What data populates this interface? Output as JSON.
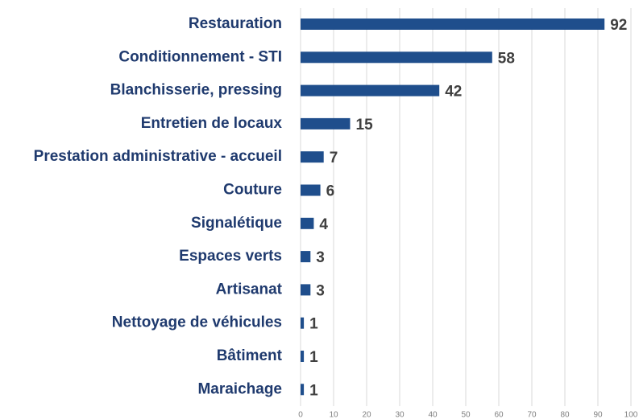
{
  "chart_data": {
    "type": "bar",
    "orientation": "horizontal",
    "categories": [
      "Restauration",
      "Conditionnement - STI",
      "Blanchisserie, pressing",
      "Entretien de locaux",
      "Prestation administrative - accueil",
      "Couture",
      "Signalétique",
      "Espaces verts",
      "Artisanat",
      "Nettoyage de véhicules",
      "Bâtiment",
      "Maraichage"
    ],
    "values": [
      92,
      58,
      42,
      15,
      7,
      6,
      4,
      3,
      3,
      1,
      1,
      1
    ],
    "color": "#1f4e8c",
    "xlim": [
      0,
      100
    ],
    "xticks": [
      0,
      10,
      20,
      30,
      40,
      50,
      60,
      70,
      80,
      90,
      100
    ],
    "grid": true
  }
}
